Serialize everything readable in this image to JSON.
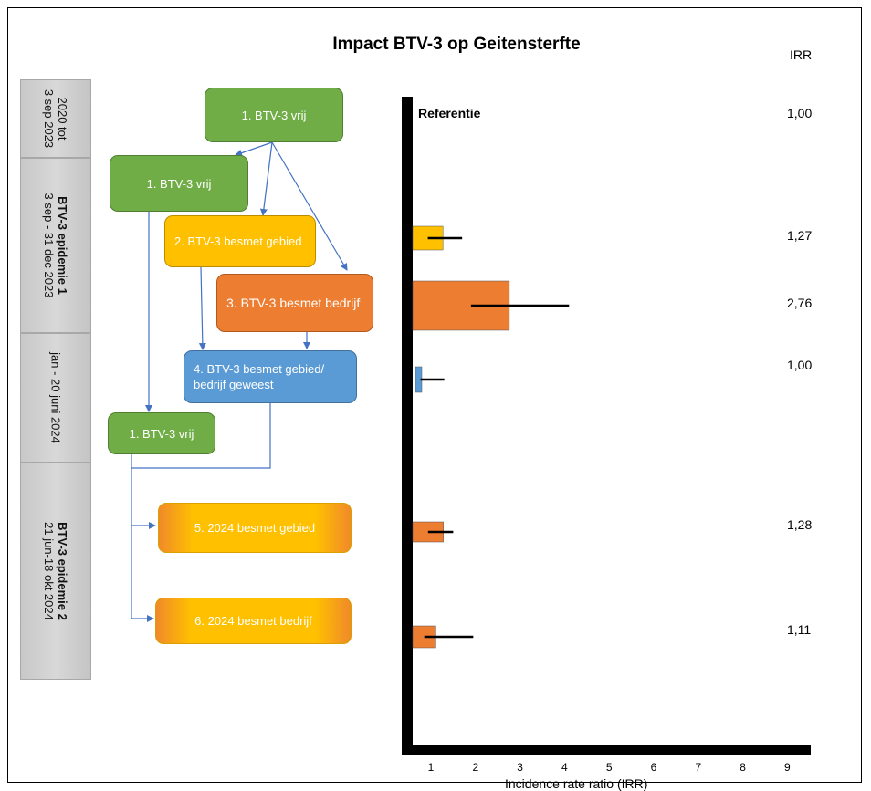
{
  "title": "Impact BTV-3 op Geitensterfte",
  "irr_header": "IRR",
  "periods": [
    {
      "line1": "2020 tot",
      "line2": "3 sep 2023",
      "bold": false
    },
    {
      "line1": "BTV-3 epidemie 1",
      "line2": "3 sep - 31 dec 2023",
      "bold": true
    },
    {
      "line1": "jan - 20 juni 2024",
      "line2": "",
      "bold": false
    },
    {
      "line1": "BTV-3 epidemie 2",
      "line2": "21 jun-18 okt 2024",
      "bold": true
    }
  ],
  "boxes": {
    "vrij_top": "1. BTV-3 vrij",
    "vrij_mid": "1. BTV-3 vrij",
    "gebied": "2. BTV-3 besmet gebied",
    "bedrijf": "3. BTV-3 besmet bedrijf",
    "geweest": "4. BTV-3 besmet gebied/ bedrijf geweest",
    "vrij_low": "1. BTV-3 vrij",
    "gebied_2024": "5. 2024 besmet gebied",
    "bedrijf_2024": "6. 2024 besmet bedrijf"
  },
  "reference_label": "Referentie",
  "irr_values": [
    "1,00",
    "1,27",
    "2,76",
    "1,00",
    "1,28",
    "1,11"
  ],
  "colors": {
    "green": "#70ad47",
    "yellow": "#ffc000",
    "orange": "#ed7d31",
    "blue": "#5b9bd5",
    "arrow": "#4472c4"
  },
  "chart_data": {
    "type": "bar",
    "orientation": "horizontal",
    "xlabel": "Incidence rate ratio (IRR)",
    "xticks": [
      "1",
      "2",
      "3",
      "4",
      "5",
      "6",
      "7",
      "8",
      "9"
    ],
    "xlim": [
      0.5,
      9.5
    ],
    "series": [
      {
        "category": "2. BTV-3 besmet gebied",
        "value": 1.27,
        "ci_high": 1.7,
        "color": "#ffc000"
      },
      {
        "category": "3. BTV-3 besmet bedrijf",
        "value": 2.76,
        "ci_low": 1.9,
        "ci_high": 4.1,
        "color": "#ed7d31"
      },
      {
        "category": "4. BTV-3 besmet gebied/ bedrijf geweest",
        "value": 1.0,
        "ci_high": 1.3,
        "color": "#5b9bd5"
      },
      {
        "category": "5. 2024 besmet gebied",
        "value": 1.28,
        "ci_high": 1.5,
        "color": "#ed7d31"
      },
      {
        "category": "6. 2024 besmet bedrijf",
        "value": 1.11,
        "ci_high": 1.95,
        "color": "#ed7d31"
      }
    ]
  }
}
